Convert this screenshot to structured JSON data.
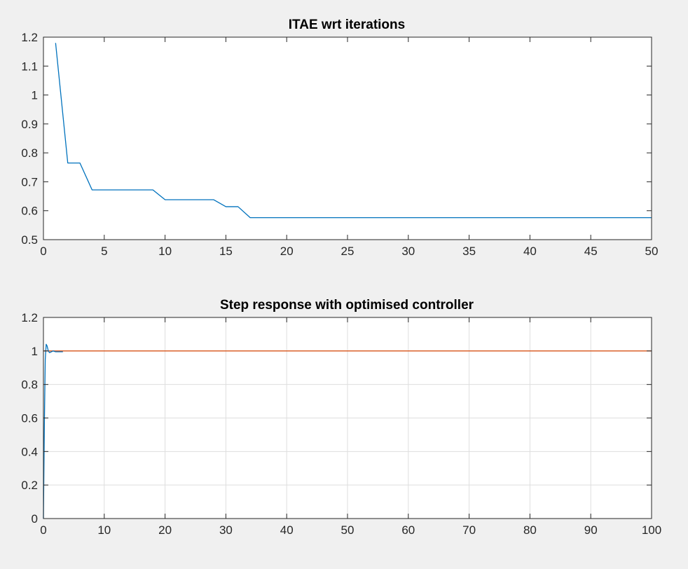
{
  "chart_data": [
    {
      "type": "line",
      "title": "ITAE wrt iterations",
      "xlabel": "",
      "ylabel": "",
      "xlim": [
        0,
        50
      ],
      "ylim": [
        0.5,
        1.2
      ],
      "xticks": [
        0,
        5,
        10,
        15,
        20,
        25,
        30,
        35,
        40,
        45,
        50
      ],
      "xtick_labels": [
        "0",
        "5",
        "10",
        "15",
        "20",
        "25",
        "30",
        "35",
        "40",
        "45",
        "50"
      ],
      "yticks": [
        0.5,
        0.6,
        0.7,
        0.8,
        0.9,
        1.0,
        1.1,
        1.2
      ],
      "ytick_labels": [
        "0.5",
        "0.6",
        "0.7",
        "0.8",
        "0.9",
        "1",
        "1.1",
        "1.2"
      ],
      "grid": false,
      "series": [
        {
          "color": "#0072bd",
          "x": [
            1,
            2,
            3,
            4,
            5,
            6,
            7,
            8,
            9,
            10,
            11,
            12,
            13,
            14,
            15,
            16,
            17,
            18,
            19,
            20,
            21,
            22,
            23,
            24,
            25,
            26,
            27,
            28,
            29,
            30,
            31,
            32,
            33,
            34,
            35,
            36,
            37,
            38,
            39,
            40,
            41,
            42,
            43,
            44,
            45,
            46,
            47,
            48,
            49,
            50
          ],
          "y": [
            1.18,
            0.765,
            0.765,
            0.672,
            0.672,
            0.672,
            0.672,
            0.672,
            0.672,
            0.638,
            0.638,
            0.638,
            0.638,
            0.638,
            0.614,
            0.614,
            0.576,
            0.576,
            0.576,
            0.576,
            0.576,
            0.576,
            0.576,
            0.576,
            0.576,
            0.576,
            0.576,
            0.576,
            0.576,
            0.576,
            0.576,
            0.576,
            0.576,
            0.576,
            0.576,
            0.576,
            0.576,
            0.576,
            0.576,
            0.576,
            0.576,
            0.576,
            0.576,
            0.576,
            0.576,
            0.576,
            0.576,
            0.576,
            0.576,
            0.576
          ]
        }
      ]
    },
    {
      "type": "line",
      "title": "Step response with optimised controller",
      "xlabel": "",
      "ylabel": "",
      "xlim": [
        0,
        100
      ],
      "ylim": [
        0,
        1.2
      ],
      "xticks": [
        0,
        10,
        20,
        30,
        40,
        50,
        60,
        70,
        80,
        90,
        100
      ],
      "xtick_labels": [
        "0",
        "10",
        "20",
        "30",
        "40",
        "50",
        "60",
        "70",
        "80",
        "90",
        "100"
      ],
      "yticks": [
        0,
        0.2,
        0.4,
        0.6,
        0.8,
        1.0,
        1.2
      ],
      "ytick_labels": [
        "0",
        "0.2",
        "0.4",
        "0.6",
        "0.8",
        "1",
        "1.2"
      ],
      "grid": true,
      "series": [
        {
          "color": "#d95319",
          "x": [
            0,
            100
          ],
          "y": [
            1,
            1
          ]
        },
        {
          "color": "#0072bd",
          "x": [
            0,
            0.15,
            0.3,
            0.45,
            0.6,
            0.8,
            1.0,
            1.3,
            1.6,
            2.0,
            2.5,
            3.2
          ],
          "y": [
            0,
            0.55,
            0.95,
            1.04,
            1.03,
            1.0,
            0.99,
            0.995,
            1.0,
            0.995,
            0.995,
            0.995
          ]
        }
      ]
    }
  ]
}
